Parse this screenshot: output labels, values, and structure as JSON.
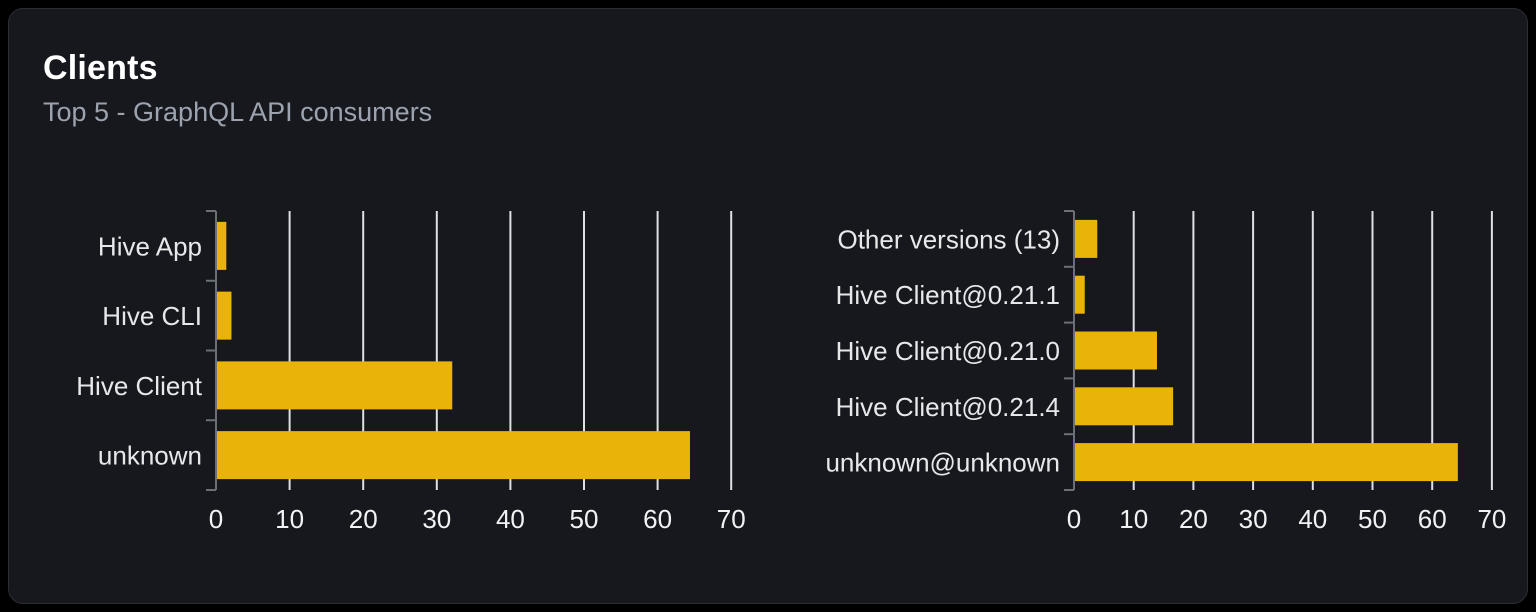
{
  "page": {
    "background": "#000000"
  },
  "card": {
    "title": "Clients",
    "subtitle": "Top 5 - GraphQL API consumers",
    "background": "#16181d",
    "border_color": "#2a2d33"
  },
  "colors": {
    "bar": "#EAB308",
    "gridline": "#dde1e7",
    "axis": "#6b7078",
    "category_label": "#e7e8ea",
    "tick_label": "#f1f2f3",
    "title": "#ffffff",
    "subtitle": "#9ca3af"
  },
  "chart_data": [
    {
      "type": "bar",
      "orientation": "horizontal",
      "title": "",
      "xlabel": "",
      "ylabel": "",
      "categories": [
        "Hive App",
        "Hive CLI",
        "Hive Client",
        "unknown"
      ],
      "values": [
        1.4,
        2.1,
        32.1,
        64.4
      ],
      "x_ticks": [
        0,
        10,
        20,
        30,
        40,
        50,
        60,
        70
      ],
      "xlim": [
        0,
        75
      ],
      "grid": "vertical-gridlines",
      "legend": "none"
    },
    {
      "type": "bar",
      "orientation": "horizontal",
      "title": "",
      "xlabel": "",
      "ylabel": "",
      "categories": [
        "Other versions (13)",
        "Hive Client@0.21.1",
        "Hive Client@0.21.0",
        "Hive Client@0.21.4",
        "unknown@unknown"
      ],
      "values": [
        3.9,
        1.8,
        13.9,
        16.6,
        64.3
      ],
      "x_ticks": [
        0,
        10,
        20,
        30,
        40,
        50,
        60,
        70
      ],
      "xlim": [
        0,
        75
      ],
      "grid": "vertical-gridlines",
      "legend": "none"
    }
  ]
}
